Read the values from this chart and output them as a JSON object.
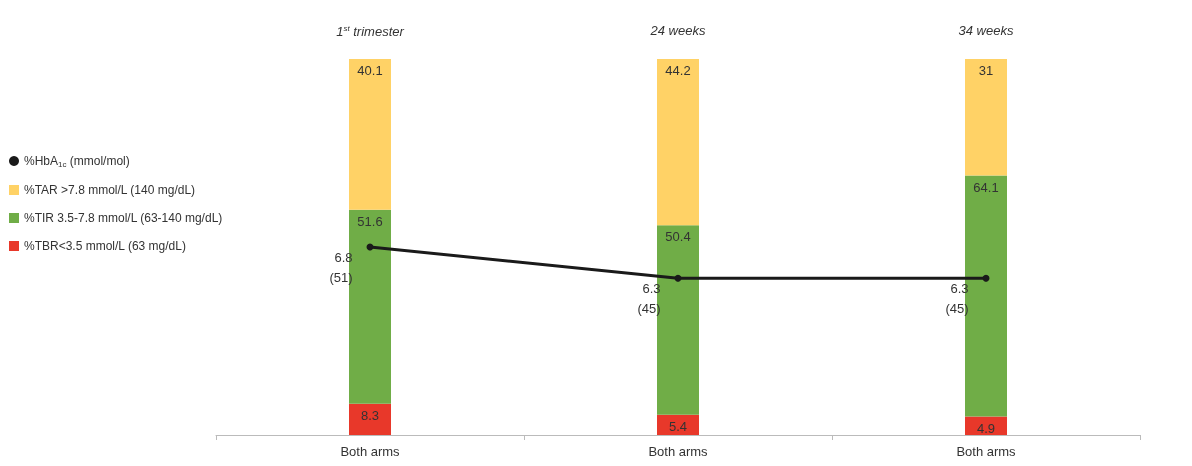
{
  "chart_data": {
    "type": "bar",
    "stacked": true,
    "categories": [
      "Both arms",
      "Both arms",
      "Both arms"
    ],
    "annotations": [
      "1$^{st}$ trimester",
      "24 weeks",
      "34 weeks"
    ],
    "series": [
      {
        "name": "%TBR<3.5 mmol/L (63 mg/dL)",
        "color": "#e8382a",
        "values": [
          8.3,
          5.4,
          4.9
        ]
      },
      {
        "name": "%TIR 3.5-7.8 mmol/L (63-140 mg/dL)",
        "color": "#70ad47",
        "values": [
          51.6,
          50.4,
          64.1
        ]
      },
      {
        "name": "%TAR >7.8 mmol/L (140 mg/dL)",
        "color": "#ffd266",
        "values": [
          40.1,
          44.2,
          31
        ]
      },
      {
        "name": "%HbA$_{1c}$ (mmol/mol)",
        "type": "line",
        "axis": "y2",
        "color": "#1a1a1a",
        "marker": "circle",
        "values": [
          6.8,
          6.3,
          6.3
        ],
        "value_labels": [
          "6.8\n(51)",
          "6.3\n(45)",
          "6.3\n(45)"
        ]
      }
    ],
    "data_labels": true,
    "ylim": [
      0,
      100
    ],
    "tick_labels": "x",
    "legend": "left",
    "grid": false
  }
}
